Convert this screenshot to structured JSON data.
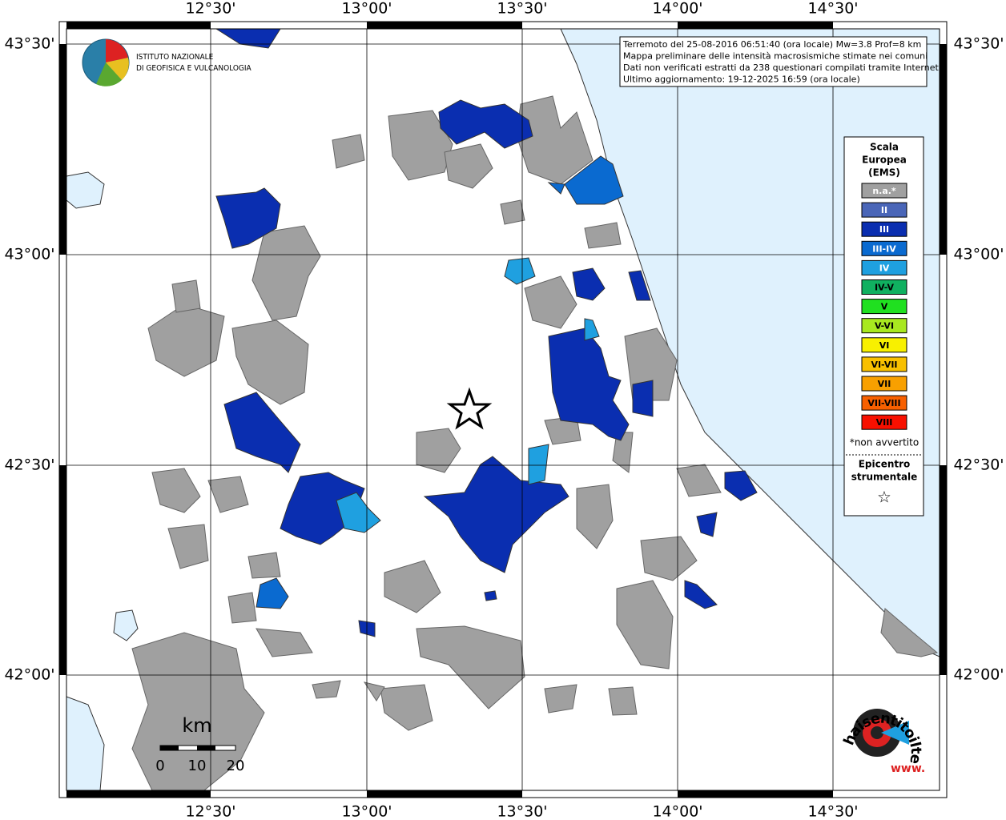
{
  "map": {
    "lon_labels": [
      "12°30'",
      "13°00'",
      "13°30'",
      "14°00'",
      "14°30'"
    ],
    "lat_labels": [
      "43°30'",
      "43°00'",
      "42°30'",
      "42°00'"
    ],
    "info": [
      "Terremoto del 25-08-2016 06:51:40 (ora locale) Mw=3.8 Prof=8 km",
      "Mappa preliminare delle intensità macrosismiche stimate nei comuni",
      "Dati non verificati estratti da 238 questionari compilati tramite Internet.",
      "Ultimo aggiornamento: 19-12-2025 16:59 (ora locale)"
    ],
    "institute": [
      "ISTITUTO NAZIONALE",
      "DI GEOFISICA E VULCANOLOGIA"
    ],
    "legend": {
      "title": [
        "Scala",
        "Europea",
        "(EMS)"
      ],
      "items": [
        {
          "label": "n.a.*",
          "color": "#a0a0a0"
        },
        {
          "label": "II",
          "color": "#4a66b8"
        },
        {
          "label": "III",
          "color": "#0a2eb0"
        },
        {
          "label": "III-IV",
          "color": "#0a6ad0"
        },
        {
          "label": "IV",
          "color": "#1fa0e0"
        },
        {
          "label": "IV-V",
          "color": "#10b060"
        },
        {
          "label": "V",
          "color": "#20e020"
        },
        {
          "label": "V-VI",
          "color": "#a8e820"
        },
        {
          "label": "VI",
          "color": "#f8f000"
        },
        {
          "label": "VI-VII",
          "color": "#f8c000"
        },
        {
          "label": "VII",
          "color": "#f8a000"
        },
        {
          "label": "VII-VIII",
          "color": "#f86000"
        },
        {
          "label": "VIII",
          "color": "#f81000"
        }
      ],
      "note": "*non avvertito",
      "epicenter": [
        "Epicentro",
        "strumentale"
      ],
      "symbol": "☆"
    },
    "scale": {
      "unit": "km",
      "ticks": [
        "0",
        "10",
        "20"
      ]
    },
    "site": {
      "prefix": "www.",
      "url": "haisentitoilterremoto.it"
    }
  }
}
